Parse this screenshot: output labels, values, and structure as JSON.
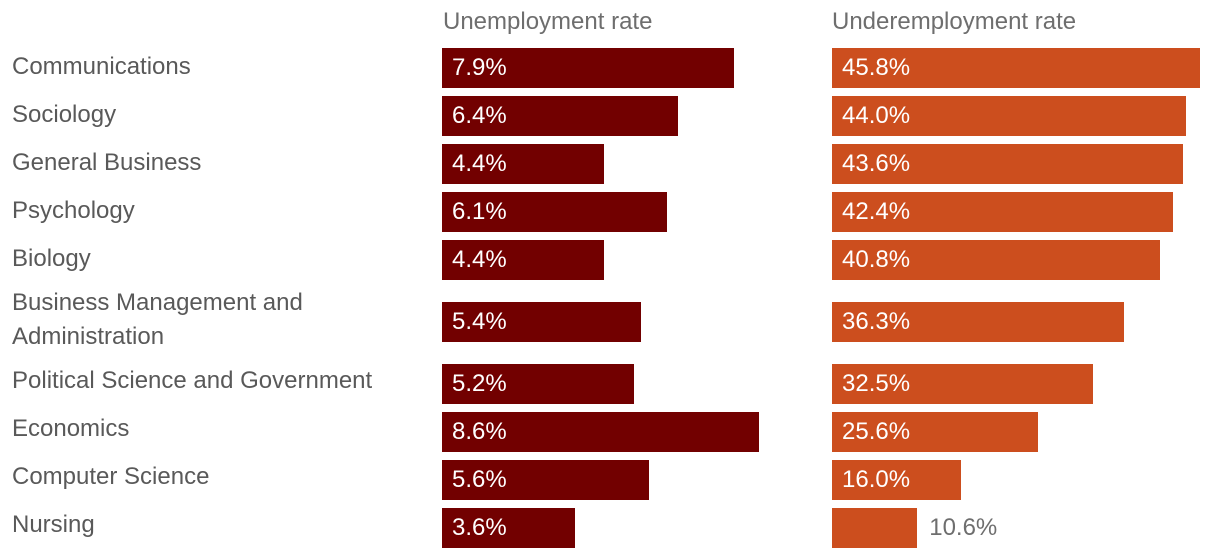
{
  "chart_data": {
    "type": "bar",
    "orientation": "horizontal",
    "categories": [
      "Communications",
      "Sociology",
      "General Business",
      "Psychology",
      "Biology",
      "Business Management and Administration",
      "Political Science and Government",
      "Economics",
      "Computer Science",
      "Nursing"
    ],
    "series": [
      {
        "name": "Unemployment rate",
        "values": [
          7.9,
          6.4,
          4.4,
          6.1,
          4.4,
          5.4,
          5.2,
          8.6,
          5.6,
          3.6
        ],
        "labels": [
          "7.9%",
          "6.4%",
          "4.4%",
          "6.1%",
          "4.4%",
          "5.4%",
          "5.2%",
          "8.6%",
          "5.6%",
          "3.6%"
        ],
        "color": "#720000"
      },
      {
        "name": "Underemployment rate",
        "values": [
          45.8,
          44.0,
          43.6,
          42.4,
          40.8,
          36.3,
          32.5,
          25.6,
          16.0,
          10.6
        ],
        "labels": [
          "45.8%",
          "44.0%",
          "43.6%",
          "42.4%",
          "40.8%",
          "36.3%",
          "32.5%",
          "25.6%",
          "16.0%",
          "10.6%"
        ],
        "color": "#cc4e1e"
      }
    ],
    "title": "",
    "xlabel": "",
    "ylabel": "",
    "grid": false,
    "legend": "none"
  }
}
